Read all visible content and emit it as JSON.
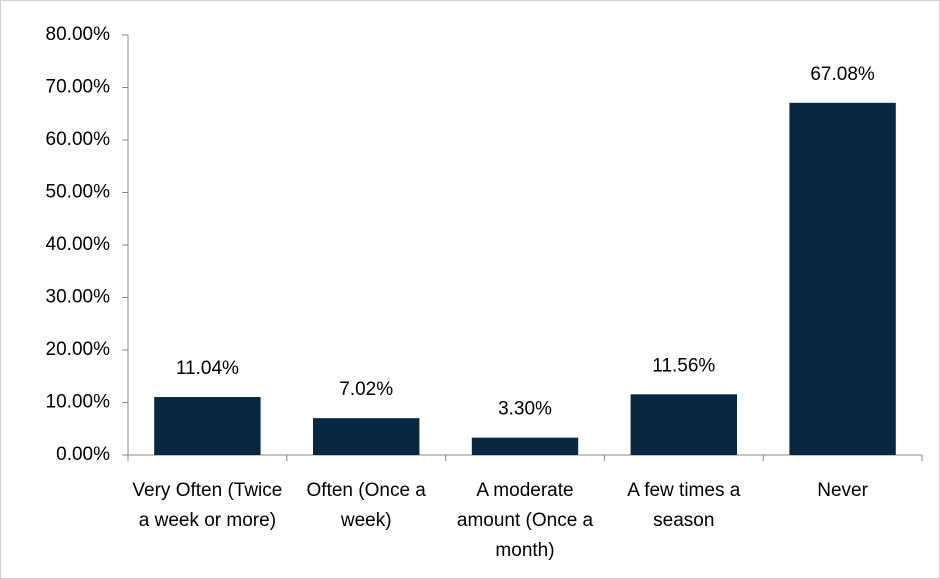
{
  "chart_data": {
    "type": "bar",
    "categories": [
      "Very Often (Twice a week or more)",
      "Often (Once a week)",
      "A moderate amount (Once a month)",
      "A few times a season",
      "Never"
    ],
    "values": [
      11.04,
      7.02,
      3.3,
      11.56,
      67.08
    ],
    "value_labels": [
      "11.04%",
      "7.02%",
      "3.30%",
      "11.56%",
      "67.08%"
    ],
    "color": "#082841",
    "ylim": [
      0,
      80
    ],
    "yticks": [
      {
        "value": 0,
        "label": "0.00%"
      },
      {
        "value": 10,
        "label": "10.00%"
      },
      {
        "value": 20,
        "label": "20.00%"
      },
      {
        "value": 30,
        "label": "30.00%"
      },
      {
        "value": 40,
        "label": "40.00%"
      },
      {
        "value": 50,
        "label": "50.00%"
      },
      {
        "value": 60,
        "label": "60.00%"
      },
      {
        "value": 70,
        "label": "70.00%"
      },
      {
        "value": 80,
        "label": "80.00%"
      }
    ],
    "grid": false
  }
}
